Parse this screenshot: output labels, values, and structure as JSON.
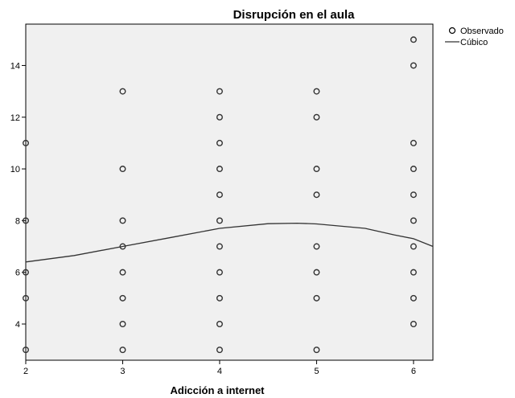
{
  "chart_data": {
    "type": "scatter",
    "title": "Disrupción en el aula",
    "xlabel": "Adicción a internet",
    "ylabel": "",
    "xlim": [
      2,
      6.2
    ],
    "ylim": [
      2.6,
      15.6
    ],
    "grid": false,
    "legend_position": "top-right",
    "xticks": [
      2,
      3,
      4,
      5,
      6
    ],
    "yticks": [
      4,
      6,
      8,
      10,
      12,
      14
    ],
    "series": [
      {
        "name": "Observado",
        "kind": "scatter",
        "marker": "open-circle",
        "points": [
          [
            2,
            3
          ],
          [
            2,
            5
          ],
          [
            2,
            6
          ],
          [
            2,
            8
          ],
          [
            2,
            11
          ],
          [
            3,
            3
          ],
          [
            3,
            4
          ],
          [
            3,
            5
          ],
          [
            3,
            6
          ],
          [
            3,
            7
          ],
          [
            3,
            8
          ],
          [
            3,
            10
          ],
          [
            3,
            13
          ],
          [
            4,
            3
          ],
          [
            4,
            4
          ],
          [
            4,
            5
          ],
          [
            4,
            6
          ],
          [
            4,
            7
          ],
          [
            4,
            8
          ],
          [
            4,
            9
          ],
          [
            4,
            10
          ],
          [
            4,
            11
          ],
          [
            4,
            12
          ],
          [
            4,
            13
          ],
          [
            5,
            3
          ],
          [
            5,
            5
          ],
          [
            5,
            6
          ],
          [
            5,
            7
          ],
          [
            5,
            9
          ],
          [
            5,
            10
          ],
          [
            5,
            12
          ],
          [
            5,
            13
          ],
          [
            6,
            4
          ],
          [
            6,
            5
          ],
          [
            6,
            6
          ],
          [
            6,
            7
          ],
          [
            6,
            8
          ],
          [
            6,
            9
          ],
          [
            6,
            10
          ],
          [
            6,
            11
          ],
          [
            6,
            14
          ],
          [
            6,
            15
          ]
        ]
      },
      {
        "name": "Cúbico",
        "kind": "line",
        "points": [
          [
            2,
            6.4
          ],
          [
            2.5,
            6.65
          ],
          [
            3,
            7.0
          ],
          [
            3.5,
            7.35
          ],
          [
            4,
            7.7
          ],
          [
            4.5,
            7.88
          ],
          [
            4.8,
            7.9
          ],
          [
            5,
            7.87
          ],
          [
            5.5,
            7.7
          ],
          [
            5.8,
            7.45
          ],
          [
            6,
            7.3
          ],
          [
            6.2,
            7.0
          ]
        ]
      }
    ],
    "colors": {
      "plot_background": "#f0f0f0",
      "marker": "#333333",
      "line": "#333333"
    }
  }
}
